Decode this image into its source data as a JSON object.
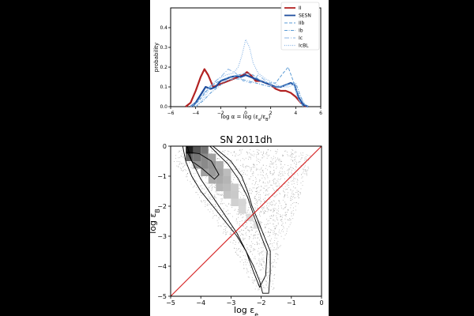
{
  "chart_data": [
    {
      "type": "line",
      "title": "",
      "xlabel": "log α = log (εₑ/ε_B)",
      "ylabel": "probability",
      "xlim": [
        -6,
        6
      ],
      "ylim": [
        0,
        0.5
      ],
      "xticks": [
        "−6",
        "−4",
        "−2",
        "0",
        "2",
        "4",
        "6"
      ],
      "yticks": [
        "0.0",
        "0.1",
        "0.2",
        "0.3",
        "0.4"
      ],
      "legend_position": "top-right",
      "series": [
        {
          "name": "II",
          "color": "#b22222",
          "style": "solid",
          "width": 2.2,
          "x": [
            -4.8,
            -4.4,
            -4.0,
            -3.6,
            -3.3,
            -3.0,
            -2.6,
            -2.2,
            -1.8,
            -1.4,
            -1.0,
            -0.6,
            -0.2,
            0.1,
            0.4,
            0.8,
            1.2,
            1.6,
            2.0,
            2.4,
            2.8,
            3.2,
            3.6,
            4.0,
            4.4,
            4.8
          ],
          "y": [
            0.0,
            0.02,
            0.08,
            0.15,
            0.19,
            0.16,
            0.1,
            0.11,
            0.12,
            0.13,
            0.14,
            0.15,
            0.16,
            0.175,
            0.16,
            0.13,
            0.13,
            0.12,
            0.11,
            0.09,
            0.08,
            0.08,
            0.07,
            0.05,
            0.02,
            0.0
          ]
        },
        {
          "name": "SESN",
          "color": "#1f4e9e",
          "style": "solid",
          "width": 2.2,
          "x": [
            -4.4,
            -4.0,
            -3.6,
            -3.2,
            -2.8,
            -2.4,
            -2.0,
            -1.6,
            -1.2,
            -0.8,
            -0.4,
            0.0,
            0.4,
            0.8,
            1.2,
            1.6,
            2.0,
            2.4,
            2.8,
            3.2,
            3.6,
            3.9,
            4.2,
            4.6,
            5.0
          ],
          "y": [
            0.0,
            0.02,
            0.06,
            0.1,
            0.09,
            0.1,
            0.13,
            0.14,
            0.15,
            0.155,
            0.15,
            0.16,
            0.15,
            0.14,
            0.13,
            0.12,
            0.11,
            0.1,
            0.1,
            0.11,
            0.12,
            0.11,
            0.05,
            0.01,
            0.0
          ]
        },
        {
          "name": "IIb",
          "color": "#5b9bd5",
          "style": "dashed",
          "width": 1,
          "x": [
            -4.2,
            -3.6,
            -3.0,
            -2.4,
            -1.8,
            -1.2,
            -0.6,
            0.0,
            0.6,
            1.2,
            1.8,
            2.4,
            3.0,
            3.4,
            3.8,
            4.2,
            4.6
          ],
          "y": [
            0.0,
            0.04,
            0.09,
            0.12,
            0.14,
            0.15,
            0.16,
            0.17,
            0.16,
            0.13,
            0.12,
            0.12,
            0.17,
            0.2,
            0.13,
            0.04,
            0.0
          ]
        },
        {
          "name": "Ib",
          "color": "#5b9bd5",
          "style": "dashdot",
          "width": 1,
          "x": [
            -4.0,
            -3.4,
            -2.8,
            -2.2,
            -1.6,
            -1.0,
            -0.4,
            0.2,
            0.8,
            1.4,
            2.0,
            2.6,
            3.2,
            3.6,
            4.0,
            4.4,
            4.8
          ],
          "y": [
            0.0,
            0.03,
            0.07,
            0.1,
            0.13,
            0.14,
            0.14,
            0.13,
            0.12,
            0.11,
            0.1,
            0.1,
            0.11,
            0.12,
            0.12,
            0.05,
            0.0
          ]
        },
        {
          "name": "Ic",
          "color": "#8ab6e6",
          "style": "longdash",
          "width": 1,
          "x": [
            -4.4,
            -3.8,
            -3.2,
            -2.6,
            -2.0,
            -1.4,
            -0.8,
            -0.2,
            0.4,
            1.0,
            1.6,
            2.2,
            2.8,
            3.4,
            3.8,
            4.2,
            4.6
          ],
          "y": [
            0.0,
            0.03,
            0.08,
            0.12,
            0.15,
            0.19,
            0.17,
            0.13,
            0.12,
            0.16,
            0.13,
            0.1,
            0.1,
            0.11,
            0.12,
            0.04,
            0.0
          ]
        },
        {
          "name": "IcBL",
          "color": "#8ab6e6",
          "style": "dotted",
          "width": 1.2,
          "x": [
            -4.0,
            -3.4,
            -2.8,
            -2.2,
            -1.6,
            -1.0,
            -0.6,
            -0.3,
            0.0,
            0.3,
            0.6,
            1.0,
            1.6,
            2.2,
            2.8,
            3.4,
            3.8,
            4.2,
            4.6,
            5.0
          ],
          "y": [
            0.0,
            0.04,
            0.1,
            0.14,
            0.16,
            0.17,
            0.2,
            0.26,
            0.34,
            0.3,
            0.22,
            0.17,
            0.14,
            0.12,
            0.1,
            0.1,
            0.11,
            0.07,
            0.02,
            0.0
          ]
        }
      ]
    },
    {
      "type": "heatmap",
      "title": "SN 2011dh",
      "xlabel": "log εₑ",
      "ylabel": "log ε_B",
      "xlim": [
        -5,
        0
      ],
      "ylim": [
        -5,
        0
      ],
      "xticks": [
        "−5",
        "−4",
        "−3",
        "−2",
        "−1",
        "0"
      ],
      "yticks": [
        "0",
        "−1",
        "−2",
        "−3",
        "−4",
        "−5"
      ],
      "reference_line": {
        "color": "#d62728",
        "from": [
          -5,
          -5
        ],
        "to": [
          0,
          0
        ]
      },
      "cell_size": [
        0.25,
        0.25
      ],
      "cells": [
        {
          "x": -4.375,
          "y": -0.125,
          "v": 0.95
        },
        {
          "x": -4.125,
          "y": -0.125,
          "v": 0.7
        },
        {
          "x": -3.875,
          "y": -0.125,
          "v": 0.55
        },
        {
          "x": -4.375,
          "y": -0.375,
          "v": 0.6
        },
        {
          "x": -4.125,
          "y": -0.375,
          "v": 0.55
        },
        {
          "x": -3.875,
          "y": -0.375,
          "v": 0.45
        },
        {
          "x": -3.625,
          "y": -0.375,
          "v": 0.35
        },
        {
          "x": -4.125,
          "y": -0.625,
          "v": 0.4
        },
        {
          "x": -3.875,
          "y": -0.625,
          "v": 0.45
        },
        {
          "x": -3.625,
          "y": -0.625,
          "v": 0.4
        },
        {
          "x": -3.375,
          "y": -0.625,
          "v": 0.3
        },
        {
          "x": -3.875,
          "y": -0.875,
          "v": 0.35
        },
        {
          "x": -3.625,
          "y": -0.875,
          "v": 0.38
        },
        {
          "x": -3.375,
          "y": -0.875,
          "v": 0.32
        },
        {
          "x": -3.125,
          "y": -0.875,
          "v": 0.22
        },
        {
          "x": -3.625,
          "y": -1.125,
          "v": 0.3
        },
        {
          "x": -3.375,
          "y": -1.125,
          "v": 0.3
        },
        {
          "x": -3.125,
          "y": -1.125,
          "v": 0.25
        },
        {
          "x": -3.375,
          "y": -1.375,
          "v": 0.25
        },
        {
          "x": -3.125,
          "y": -1.375,
          "v": 0.22
        },
        {
          "x": -2.875,
          "y": -1.375,
          "v": 0.15
        },
        {
          "x": -3.125,
          "y": -1.625,
          "v": 0.18
        },
        {
          "x": -2.875,
          "y": -1.625,
          "v": 0.16
        },
        {
          "x": -2.875,
          "y": -1.875,
          "v": 0.12
        },
        {
          "x": -2.625,
          "y": -1.875,
          "v": 0.1
        },
        {
          "x": -2.625,
          "y": -2.125,
          "v": 0.09
        },
        {
          "x": -2.375,
          "y": -2.375,
          "v": 0.07
        },
        {
          "x": -2.125,
          "y": -2.625,
          "v": 0.06
        }
      ],
      "contours": [
        [
          [
            -4.6,
            0
          ],
          [
            -4.5,
            -0.5
          ],
          [
            -4.3,
            -1.0
          ],
          [
            -4.0,
            -1.5
          ],
          [
            -3.6,
            -2.0
          ],
          [
            -3.2,
            -2.5
          ],
          [
            -2.8,
            -3.0
          ],
          [
            -2.5,
            -3.5
          ],
          [
            -2.25,
            -4.0
          ],
          [
            -2.05,
            -4.5
          ],
          [
            -1.95,
            -4.9
          ],
          [
            -1.75,
            -4.9
          ],
          [
            -1.7,
            -4.2
          ],
          [
            -1.7,
            -3.5
          ],
          [
            -1.9,
            -3.0
          ],
          [
            -2.1,
            -2.5
          ],
          [
            -2.3,
            -2.0
          ],
          [
            -2.45,
            -1.5
          ],
          [
            -2.65,
            -1.0
          ],
          [
            -3.0,
            -0.5
          ],
          [
            -3.6,
            0
          ]
        ],
        [
          [
            -4.45,
            0
          ],
          [
            -4.3,
            -0.5
          ],
          [
            -4.0,
            -1.1
          ],
          [
            -3.6,
            -1.7
          ],
          [
            -3.2,
            -2.3
          ],
          [
            -2.8,
            -2.9
          ],
          [
            -2.5,
            -3.5
          ],
          [
            -2.25,
            -4.2
          ],
          [
            -2.05,
            -4.7
          ],
          [
            -1.85,
            -4.3
          ],
          [
            -1.8,
            -3.5
          ],
          [
            -2.0,
            -3.0
          ],
          [
            -2.25,
            -2.3
          ],
          [
            -2.45,
            -1.7
          ],
          [
            -2.75,
            -1.1
          ],
          [
            -3.1,
            -0.6
          ],
          [
            -3.7,
            0
          ]
        ],
        [
          [
            -4.45,
            -0.2
          ],
          [
            -4.05,
            -0.25
          ],
          [
            -3.65,
            -0.5
          ],
          [
            -3.4,
            -0.95
          ],
          [
            -3.55,
            -1.1
          ],
          [
            -3.95,
            -0.75
          ],
          [
            -4.3,
            -0.5
          ]
        ]
      ],
      "scatter_extent": [
        [
          -4.9,
          -0.1
        ],
        [
          -1.0,
          -0.1
        ],
        [
          -0.3,
          -0.3
        ],
        [
          -0.9,
          -2.3
        ],
        [
          -1.4,
          -3.4
        ],
        [
          -1.6,
          -4.8
        ],
        [
          -2.2,
          -4.8
        ],
        [
          -3.0,
          -3.3
        ],
        [
          -4.1,
          -1.7
        ],
        [
          -4.9,
          -0.6
        ]
      ]
    }
  ]
}
